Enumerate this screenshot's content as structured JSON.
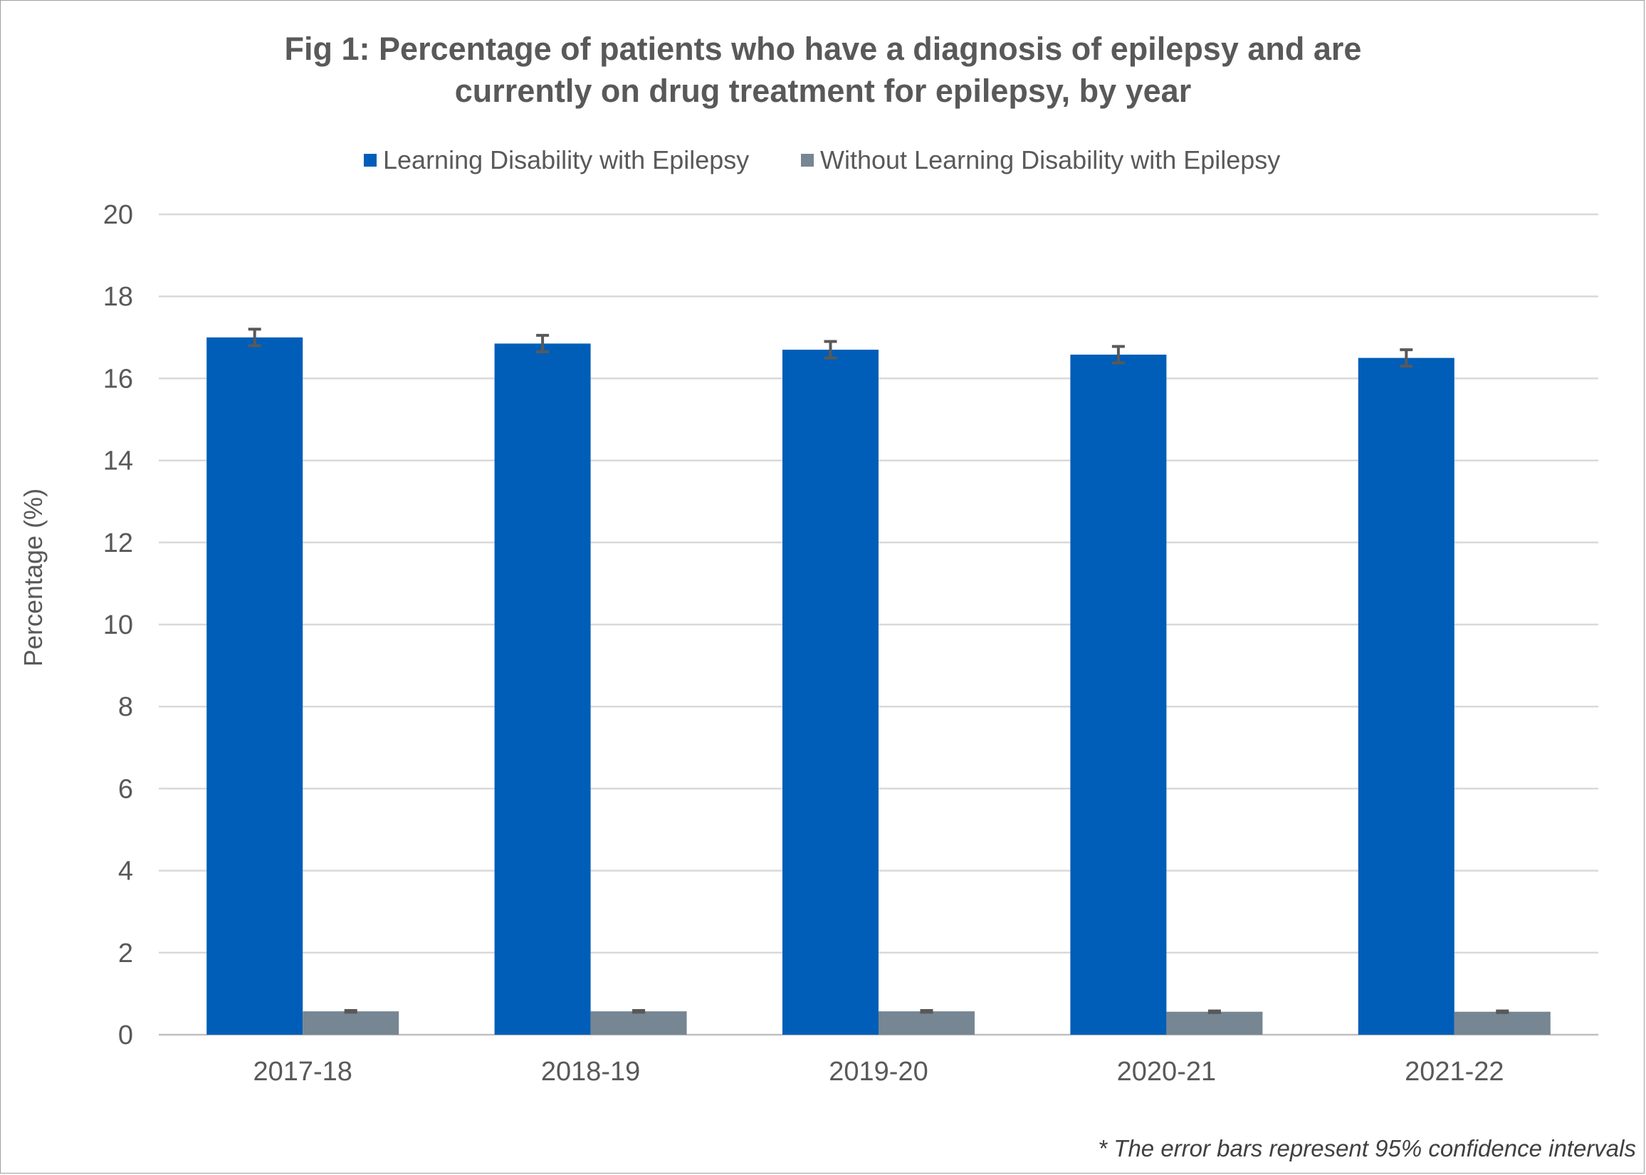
{
  "chart_data": {
    "type": "bar",
    "title": [
      "Fig 1: Percentage of patients who have a diagnosis of epilepsy and are",
      "currently on drug treatment for epilepsy, by year"
    ],
    "xlabel": "",
    "ylabel": "Percentage (%)",
    "ylim": [
      0,
      20
    ],
    "yticks": [
      0,
      2,
      4,
      6,
      8,
      10,
      12,
      14,
      16,
      18,
      20
    ],
    "grid": true,
    "legend_position": "top",
    "categories": [
      "2017-18",
      "2018-19",
      "2019-20",
      "2020-21",
      "2021-22"
    ],
    "series": [
      {
        "name": "Learning Disability with Epilepsy",
        "color": "#005EB8",
        "values": [
          17.0,
          16.85,
          16.7,
          16.58,
          16.5
        ],
        "error_low": [
          16.8,
          16.65,
          16.5,
          16.38,
          16.3
        ],
        "error_high": [
          17.2,
          17.05,
          16.9,
          16.78,
          16.7
        ]
      },
      {
        "name": "Without Learning Disability with Epilepsy",
        "color": "#768692",
        "values": [
          0.57,
          0.57,
          0.57,
          0.56,
          0.56
        ],
        "error_low": [
          0.55,
          0.55,
          0.55,
          0.54,
          0.54
        ],
        "error_high": [
          0.59,
          0.59,
          0.59,
          0.58,
          0.58
        ]
      }
    ],
    "error_bar_color": "#595959",
    "footnote": "* The error bars represent 95% confidence intervals"
  }
}
